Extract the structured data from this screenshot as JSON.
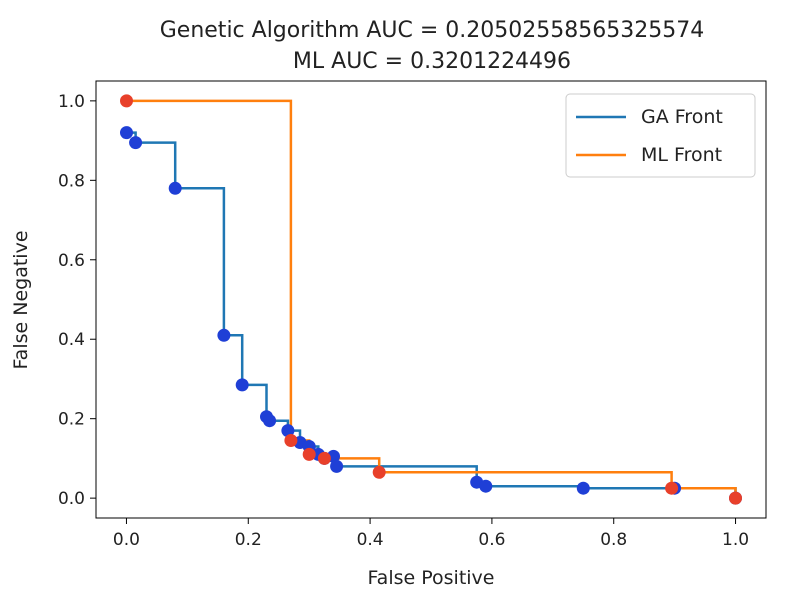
{
  "chart_data": {
    "type": "line",
    "title_line1": "Genetic Algorithm AUC = 0.20502558565325574",
    "title_line2": "ML AUC = 0.3201224496",
    "xlabel": "False Positive",
    "ylabel": "False Negative",
    "xlim": [
      -0.05,
      1.05
    ],
    "ylim": [
      -0.05,
      1.05
    ],
    "xticks": [
      0.0,
      0.2,
      0.4,
      0.6,
      0.8,
      1.0
    ],
    "yticks": [
      0.0,
      0.2,
      0.4,
      0.6,
      0.8,
      1.0
    ],
    "xtick_labels": [
      "0.0",
      "0.2",
      "0.4",
      "0.6",
      "0.8",
      "1.0"
    ],
    "ytick_labels": [
      "0.0",
      "0.2",
      "0.4",
      "0.6",
      "0.8",
      "1.0"
    ],
    "legend_position": "upper right",
    "series": [
      {
        "name": "GA Front",
        "line_color": "#1f77b4",
        "marker_color": "#1f3fd6",
        "points": [
          [
            0.0,
            0.92
          ],
          [
            0.015,
            0.895
          ],
          [
            0.08,
            0.78
          ],
          [
            0.16,
            0.41
          ],
          [
            0.19,
            0.285
          ],
          [
            0.23,
            0.205
          ],
          [
            0.235,
            0.195
          ],
          [
            0.265,
            0.17
          ],
          [
            0.285,
            0.14
          ],
          [
            0.3,
            0.13
          ],
          [
            0.315,
            0.11
          ],
          [
            0.325,
            0.1
          ],
          [
            0.34,
            0.105
          ],
          [
            0.345,
            0.08
          ],
          [
            0.575,
            0.04
          ],
          [
            0.59,
            0.03
          ],
          [
            0.75,
            0.025
          ],
          [
            0.9,
            0.025
          ],
          [
            1.0,
            0.0
          ]
        ]
      },
      {
        "name": "ML Front",
        "line_color": "#ff7f0e",
        "marker_color": "#e8402a",
        "points": [
          [
            0.0,
            1.0
          ],
          [
            0.27,
            0.145
          ],
          [
            0.3,
            0.11
          ],
          [
            0.325,
            0.1
          ],
          [
            0.415,
            0.065
          ],
          [
            0.895,
            0.025
          ],
          [
            1.0,
            0.0
          ]
        ]
      }
    ]
  }
}
